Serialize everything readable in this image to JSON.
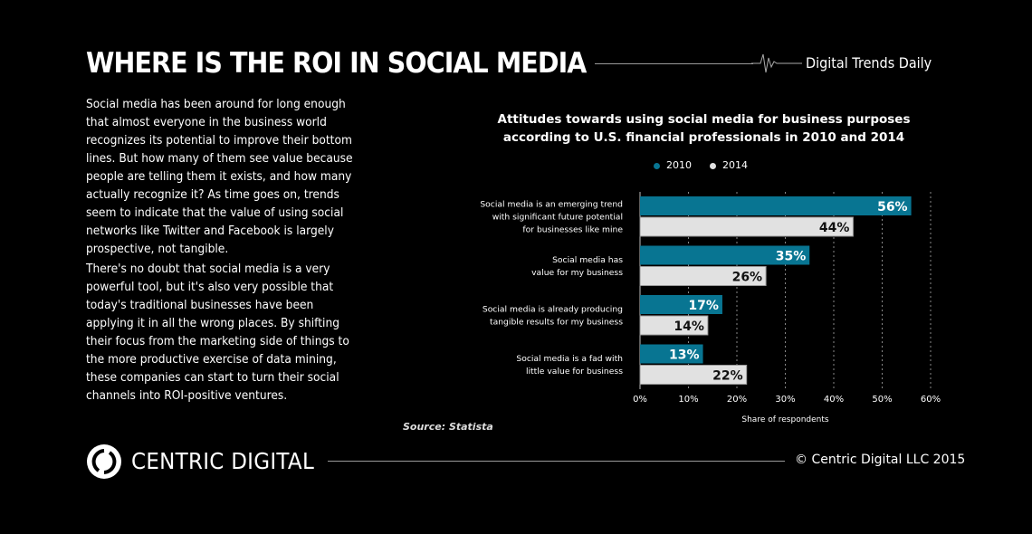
{
  "header": {
    "title": "WHERE IS THE ROI IN SOCIAL MEDIA",
    "publication": "Digital Trends Daily"
  },
  "body": {
    "paragraphs": [
      "Social media has been around for long enough that almost everyone in the business world recognizes its potential to improve their bottom lines. But how many of them see value because people are telling them it exists, and how many actually recognize it? As time goes on, trends seem to indicate that the value of using social networks like Twitter and Facebook is largely prospective, not tangible.",
      "There's no doubt that social media is a very powerful tool, but it's also very possible that today's traditional businesses have been applying it in all the wrong places. By shifting their focus from the marketing side of things to the more productive exercise of data mining, these companies can start to turn their social channels into ROI-positive ventures."
    ],
    "source": "Source: Statista"
  },
  "footer": {
    "brand": "CENTRIC DIGITAL",
    "copyright": "© Centric Digital LLC 2015"
  },
  "chart_data": {
    "type": "bar",
    "orientation": "horizontal",
    "title": "Attitudes towards using social media for business purposes according to U.S. financial professionals in 2010 and 2014",
    "xlabel": "Share of respondents",
    "xlim": [
      0,
      60
    ],
    "ticks": [
      "0%",
      "10%",
      "20%",
      "30%",
      "40%",
      "50%",
      "60%"
    ],
    "grid": true,
    "legend_placement": "top",
    "categories": [
      [
        "Social media is an emerging trend",
        "with significant future potential",
        "for businesses like mine"
      ],
      [
        "Social media has",
        "value for my business"
      ],
      [
        "Social media is already producing",
        "tangible results for my business"
      ],
      [
        "Social media is a fad with",
        "little value for business"
      ]
    ],
    "series": [
      {
        "name": "2010",
        "color": "#087592",
        "values": [
          56,
          35,
          17,
          13
        ]
      },
      {
        "name": "2014",
        "color": "#e1e1e1",
        "values": [
          44,
          26,
          14,
          22
        ]
      }
    ]
  }
}
